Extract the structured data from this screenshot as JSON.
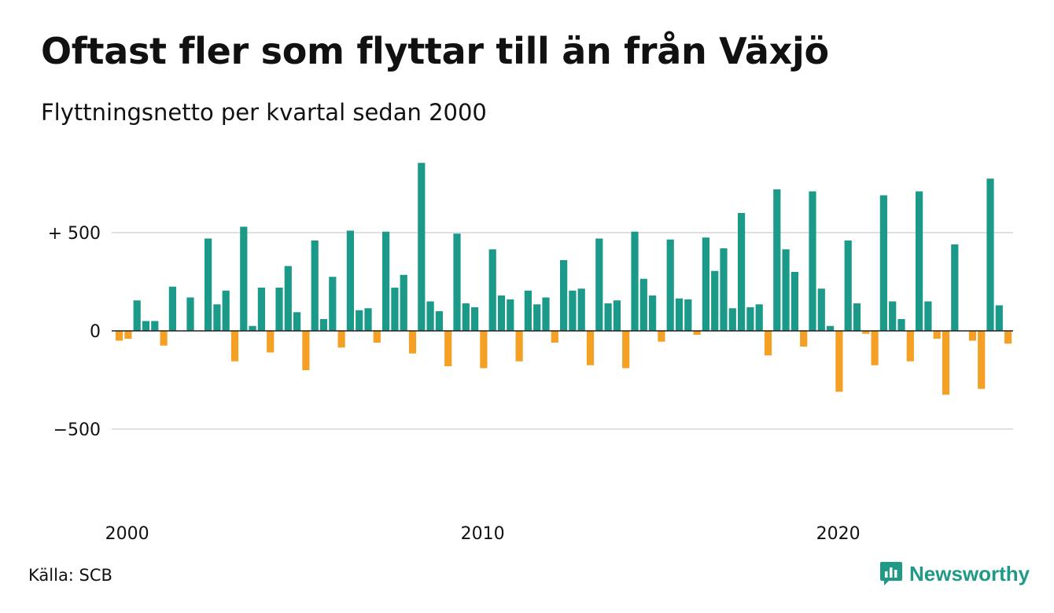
{
  "header": {
    "title": "Oftast fler som flyttar till än från Växjö",
    "subtitle": "Flyttningsnetto per kvartal sedan 2000"
  },
  "footer": {
    "source": "Källa: SCB",
    "brand": "Newsworthy"
  },
  "colors": {
    "positive": "#1b9a89",
    "negative": "#f4a024",
    "grid": "#e0e0e0",
    "brand": "#1e9a87"
  },
  "chart_data": {
    "type": "bar",
    "title": "Oftast fler som flyttar till än från Växjö",
    "subtitle": "Flyttningsnetto per kvartal sedan 2000",
    "xlabel": "",
    "ylabel": "",
    "x_start": "2000 Q1",
    "x_step": "quarter",
    "ylim": [
      -850,
      880
    ],
    "y_ticks": [
      {
        "value": 500,
        "label": "+ 500"
      },
      {
        "value": 0,
        "label": "0"
      },
      {
        "value": -500,
        "label": "−500"
      }
    ],
    "x_ticks": [
      {
        "year": 2000,
        "label": "2000"
      },
      {
        "year": 2010,
        "label": "2010"
      },
      {
        "year": 2020,
        "label": "2020"
      }
    ],
    "grid": true,
    "series": [
      {
        "name": "",
        "values": [
          -50,
          -40,
          155,
          50,
          50,
          -75,
          225,
          0,
          170,
          0,
          470,
          135,
          205,
          -155,
          530,
          25,
          220,
          -110,
          220,
          330,
          95,
          -200,
          460,
          60,
          275,
          -85,
          510,
          105,
          115,
          -60,
          505,
          220,
          285,
          -115,
          855,
          150,
          100,
          -180,
          495,
          140,
          120,
          -190,
          415,
          180,
          160,
          -155,
          205,
          135,
          170,
          -60,
          360,
          205,
          215,
          -175,
          470,
          140,
          155,
          -190,
          505,
          265,
          180,
          -55,
          465,
          165,
          160,
          -20,
          475,
          305,
          420,
          115,
          600,
          120,
          135,
          -125,
          720,
          415,
          300,
          -80,
          710,
          215,
          25,
          -310,
          460,
          140,
          -15,
          -175,
          690,
          150,
          60,
          -155,
          710,
          150,
          -40,
          -325,
          440,
          0,
          -50,
          -295,
          775,
          130,
          -65
        ]
      }
    ]
  }
}
